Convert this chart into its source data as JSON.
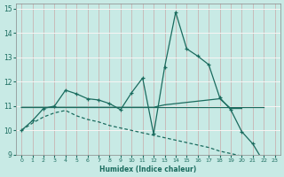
{
  "xlabel": "Humidex (Indice chaleur)",
  "bg_color": "#c8eae5",
  "grid_color": "#d4d4d4",
  "line_color": "#1a6b5e",
  "xlim": [
    -0.5,
    23.5
  ],
  "ylim": [
    9,
    15.2
  ],
  "yticks": [
    9,
    10,
    11,
    12,
    13,
    14,
    15
  ],
  "xticks": [
    0,
    1,
    2,
    3,
    4,
    5,
    6,
    7,
    8,
    9,
    10,
    11,
    12,
    13,
    14,
    15,
    16,
    17,
    18,
    19,
    20,
    21,
    22,
    23
  ],
  "line1_x": [
    0,
    1,
    2,
    3,
    4,
    5,
    6,
    7,
    8,
    9,
    10,
    11,
    12,
    13,
    14,
    15,
    16,
    17,
    18,
    19,
    20,
    21,
    22
  ],
  "line1_y": [
    10.0,
    10.4,
    10.9,
    11.0,
    11.65,
    11.5,
    11.3,
    11.25,
    11.1,
    10.85,
    11.55,
    12.15,
    9.85,
    12.6,
    14.85,
    13.35,
    13.05,
    12.7,
    11.35,
    10.85,
    9.95,
    9.45,
    8.7
  ],
  "line2_x": [
    0,
    1,
    2,
    3,
    4,
    5,
    6,
    7,
    8,
    9,
    10,
    11,
    12,
    13,
    14,
    15,
    16,
    17,
    18,
    19,
    20,
    21,
    22
  ],
  "line2_y": [
    10.95,
    10.95,
    10.95,
    10.95,
    10.95,
    10.95,
    10.95,
    10.95,
    10.95,
    10.95,
    10.95,
    10.95,
    10.95,
    10.95,
    10.95,
    10.95,
    10.95,
    10.95,
    10.95,
    10.95,
    10.95,
    10.95,
    10.95
  ],
  "line3_x": [
    0,
    1,
    2,
    3,
    4,
    5,
    6,
    7,
    8,
    9,
    10,
    11,
    12,
    13,
    14,
    15,
    16,
    17,
    18,
    19,
    20,
    21,
    22,
    23
  ],
  "line3_y": [
    10.0,
    10.3,
    10.55,
    10.72,
    10.82,
    10.6,
    10.45,
    10.35,
    10.2,
    10.1,
    10.0,
    9.9,
    9.8,
    9.7,
    9.6,
    9.5,
    9.4,
    9.3,
    9.15,
    9.05,
    8.95,
    8.85,
    8.72,
    8.65
  ],
  "line4_x": [
    0,
    1,
    2,
    3,
    4,
    5,
    6,
    7,
    8,
    9,
    10,
    11,
    12,
    13,
    14,
    15,
    16,
    17,
    18,
    19,
    20
  ],
  "line4_y": [
    10.95,
    10.95,
    10.95,
    10.95,
    10.95,
    10.95,
    10.95,
    10.95,
    10.95,
    10.95,
    10.95,
    10.95,
    10.95,
    11.05,
    11.1,
    11.15,
    11.2,
    11.25,
    11.3,
    10.9,
    10.9
  ]
}
